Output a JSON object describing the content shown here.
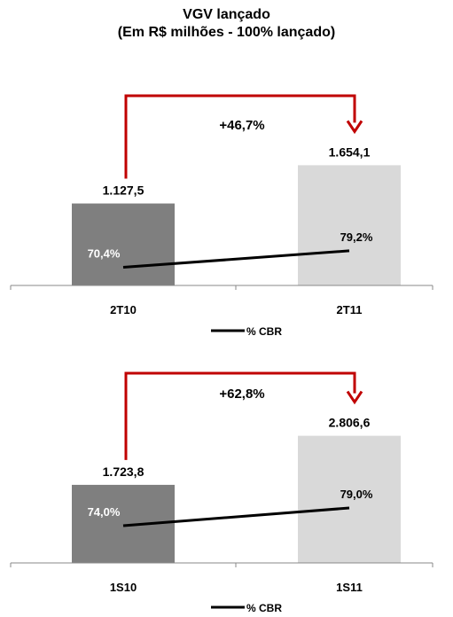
{
  "title": {
    "line1": "VGV lançado",
    "line2": "(Em R$ milhões - 100% lançado)"
  },
  "chart_data": [
    {
      "type": "bar",
      "categories": [
        "2T10",
        "2T11"
      ],
      "series": [
        {
          "values": [
            1127.5,
            1654.1
          ],
          "labels": [
            "1.127,5",
            "1.654,1"
          ]
        },
        {
          "name": "% CBR",
          "values": [
            70.4,
            79.2
          ],
          "labels": [
            "70,4%",
            "79,2%"
          ]
        }
      ],
      "growth_label": "+46,7%",
      "legend": "% CBR",
      "colors": {
        "bar1": "#7f7f7f",
        "bar2": "#d9d9d9",
        "arrow": "#c00000",
        "line": "#000000"
      }
    },
    {
      "type": "bar",
      "categories": [
        "1S10",
        "1S11"
      ],
      "series": [
        {
          "values": [
            1723.8,
            2806.6
          ],
          "labels": [
            "1.723,8",
            "2.806,6"
          ]
        },
        {
          "name": "% CBR",
          "values": [
            74.0,
            79.0
          ],
          "labels": [
            "74,0%",
            "79,0%"
          ]
        }
      ],
      "growth_label": "+62,8%",
      "legend": "% CBR",
      "colors": {
        "bar1": "#7f7f7f",
        "bar2": "#d9d9d9",
        "arrow": "#c00000",
        "line": "#000000"
      }
    }
  ]
}
